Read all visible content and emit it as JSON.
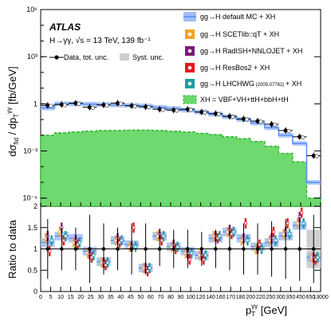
{
  "chart_data": {
    "type": "line",
    "experiment": "ATLAS",
    "process": "H→γγ, √s = 13 TeV, 139 fb⁻¹",
    "x_unit": "GeV",
    "x_edges": [
      0,
      5,
      10,
      15,
      20,
      25,
      30,
      35,
      45,
      60,
      80,
      100,
      120,
      140,
      170,
      200,
      250,
      350,
      450,
      650,
      13000
    ],
    "x_tick_labels": [
      "0",
      "5",
      "10",
      "15",
      "20",
      "25",
      "30",
      "35",
      "40",
      "45",
      "50",
      "60",
      "70",
      "80",
      "90",
      "100",
      "120",
      "140",
      "160",
      "170",
      "180",
      "200",
      "220",
      "250",
      "300",
      "350",
      "450",
      "650",
      "13000"
    ],
    "top_panel": {
      "ylabel": "dσfid / dpTγγ [fb/GeV]",
      "scale": "log",
      "ylim": [
        3e-07,
        1000000.0
      ],
      "y_tick_labels": [
        "10⁻⁶",
        "10⁻³",
        "1",
        "10³",
        "10⁶"
      ],
      "legend": {
        "data": "Data, tot. unc.",
        "syst": "Syst. unc.",
        "models": [
          {
            "name": "gg→H default MC + XH",
            "color": "#5b8ff5"
          },
          {
            "name": "gg→H SCETlib::qT + XH",
            "color": "#f5a623"
          },
          {
            "name": "gg→H RadISH+NNLOJET + XH",
            "color": "#7a1a7a"
          },
          {
            "name": "gg→H ResBos2 + XH",
            "color": "#e8141c"
          },
          {
            "name": "gg→H LHCHWG",
            "note": "(2005.07762)",
            "suffix": "+ XH",
            "color": "#1a9e9e"
          },
          {
            "name": "XH = VBF+VH+ttH+bbH+tH",
            "color": "#6fd86f"
          }
        ]
      },
      "series": [
        {
          "name": "Data",
          "values": [
            0.8,
            0.9,
            1.1,
            0.6,
            0.85,
            1.1,
            0.75,
            0.65,
            0.45,
            0.4,
            0.45,
            0.3,
            0.24,
            0.16,
            0.11,
            0.08,
            0.05,
            0.02,
            0.008,
            0.0005
          ]
        },
        {
          "name": "gg→H default MC + XH",
          "values": [
            0.55,
            1.0,
            1.0,
            0.95,
            0.9,
            0.85,
            0.8,
            0.72,
            0.6,
            0.5,
            0.4,
            0.3,
            0.22,
            0.15,
            0.1,
            0.06,
            0.03,
            0.01,
            0.003,
            1e-05
          ]
        },
        {
          "name": "XH = VBF+VH+ttH+bbH+tH",
          "values": [
            0.01,
            0.014,
            0.016,
            0.018,
            0.02,
            0.02,
            0.021,
            0.021,
            0.02,
            0.018,
            0.016,
            0.013,
            0.011,
            0.008,
            0.006,
            0.004,
            0.002,
            0.0007,
            0.0002,
            1e-06
          ]
        }
      ]
    },
    "ratio_panel": {
      "ylabel": "Ratio to data",
      "ylim": [
        0,
        2
      ],
      "y_tick_labels": [
        "0",
        "0.5",
        "1",
        "1.5",
        "2"
      ],
      "data_ratio_error": [
        0.7,
        0.5,
        0.5,
        0.8,
        0.6,
        0.5,
        0.6,
        0.6,
        0.4,
        0.45,
        0.45,
        0.4,
        0.45,
        0.5,
        0.6,
        0.6,
        0.65,
        0.7,
        0.75,
        0.8
      ],
      "ratios": [
        {
          "name": "gg→H default MC + XH",
          "values": [
            1.15,
            1.3,
            1.25,
            0.95,
            0.7,
            1.2,
            1.1,
            0.55,
            1.3,
            1.05,
            0.95,
            0.85,
            1.25,
            1.4,
            1.25,
            1.05,
            1.15,
            1.3,
            1.55,
            0.8
          ]
        },
        {
          "name": "gg→H SCETlib::qT + XH",
          "values": [
            1.25,
            1.4,
            1.15,
            0.9,
            0.68,
            1.2,
            1.05,
            0.55,
            1.3,
            1.05,
            0.9,
            0.85,
            1.3,
            1.4,
            1.2,
            1.0,
            1.2,
            1.35,
            1.6,
            0.8
          ]
        },
        {
          "name": "gg→H RadISH+NNLOJET + XH",
          "values": [
            1.3,
            1.5,
            1.2,
            0.88,
            0.68,
            1.25,
            1.05,
            0.55,
            1.35,
            1.1,
            0.9,
            0.85,
            1.3,
            1.45,
            1.25,
            1.0,
            1.25,
            1.4,
            1.75,
            0.8
          ]
        },
        {
          "name": "gg→H ResBos2 + XH",
          "values": [
            0.95,
            1.2,
            1.1,
            0.8,
            0.62,
            1.15,
            1.5,
            0.48,
            1.2,
            1.0,
            0.75,
            0.75,
            1.25,
            1.35,
            1.6,
            1.1,
            1.4,
            1.6,
            1.85,
            0.75
          ]
        },
        {
          "name": "gg→H LHCHWG (2005.07762) + XH",
          "values": [
            1.2,
            1.3,
            1.15,
            0.85,
            0.68,
            1.2,
            1.05,
            0.55,
            1.3,
            1.05,
            0.9,
            0.85,
            1.3,
            1.4,
            1.2,
            1.0,
            1.2,
            1.35,
            1.6,
            0.8
          ]
        }
      ]
    },
    "xlabel": "pTγγ [GeV]"
  }
}
